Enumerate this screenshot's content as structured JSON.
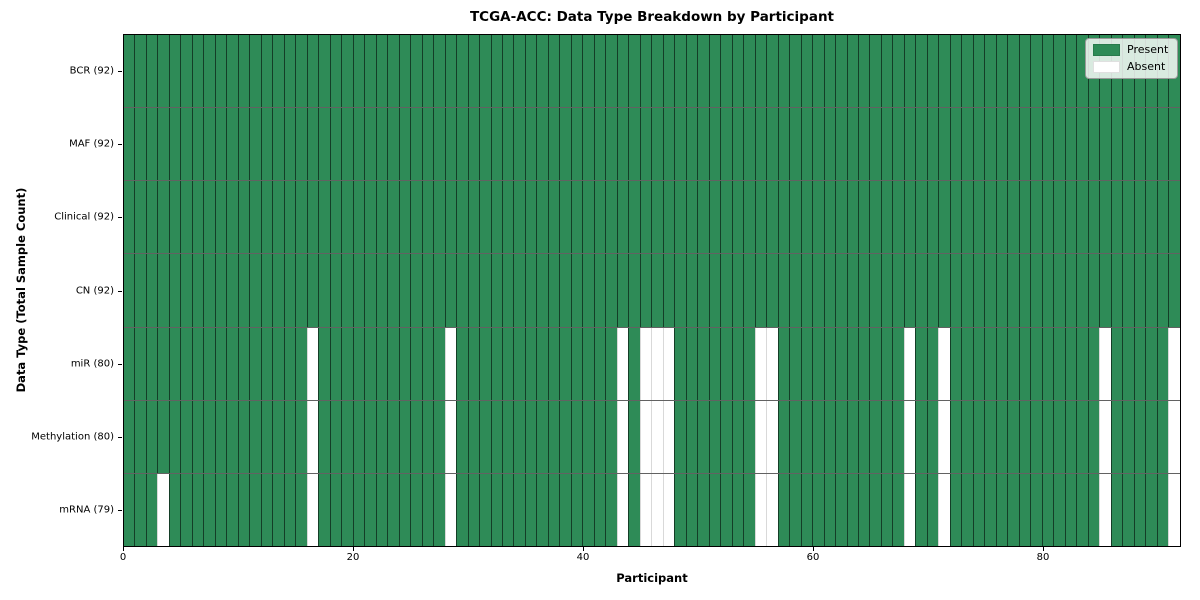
{
  "chart_data": {
    "type": "heatmap",
    "title": "TCGA-ACC: Data Type Breakdown by Participant",
    "xlabel": "Participant",
    "ylabel": "Data Type (Total Sample Count)",
    "n_participants": 92,
    "xlim": [
      0,
      92
    ],
    "x_ticks": [
      0,
      20,
      40,
      60,
      80
    ],
    "legend_position": "upper-right",
    "legend": [
      {
        "label": "Present",
        "color": "#2e8b57"
      },
      {
        "label": "Absent",
        "color": "#ffffff"
      }
    ],
    "rows": [
      {
        "label": "BCR (92)",
        "data_type": "BCR",
        "present_count": 92,
        "absent_participants": []
      },
      {
        "label": "MAF (92)",
        "data_type": "MAF",
        "present_count": 92,
        "absent_participants": []
      },
      {
        "label": "Clinical (92)",
        "data_type": "Clinical",
        "present_count": 92,
        "absent_participants": []
      },
      {
        "label": "CN (92)",
        "data_type": "CN",
        "present_count": 92,
        "absent_participants": []
      },
      {
        "label": "miR (80)",
        "data_type": "miR",
        "present_count": 80,
        "absent_participants": [
          16,
          28,
          43,
          45,
          46,
          47,
          55,
          56,
          68,
          71,
          85,
          91
        ]
      },
      {
        "label": "Methylation (80)",
        "data_type": "Methylation",
        "present_count": 80,
        "absent_participants": [
          16,
          28,
          43,
          45,
          46,
          47,
          55,
          56,
          68,
          71,
          85,
          91
        ]
      },
      {
        "label": "mRNA (79)",
        "data_type": "mRNA",
        "present_count": 79,
        "absent_participants": [
          3,
          16,
          28,
          43,
          45,
          46,
          47,
          55,
          56,
          68,
          71,
          85,
          91
        ]
      }
    ],
    "colors": {
      "present": "#2e8b57",
      "absent": "#ffffff",
      "cell_edge": "rgba(0,0,0,0.55)",
      "cell_edge_light": "rgba(0,0,0,0.15)",
      "row_separator": "rgba(70,70,70,0.85)",
      "plot_border": "#000000"
    }
  }
}
